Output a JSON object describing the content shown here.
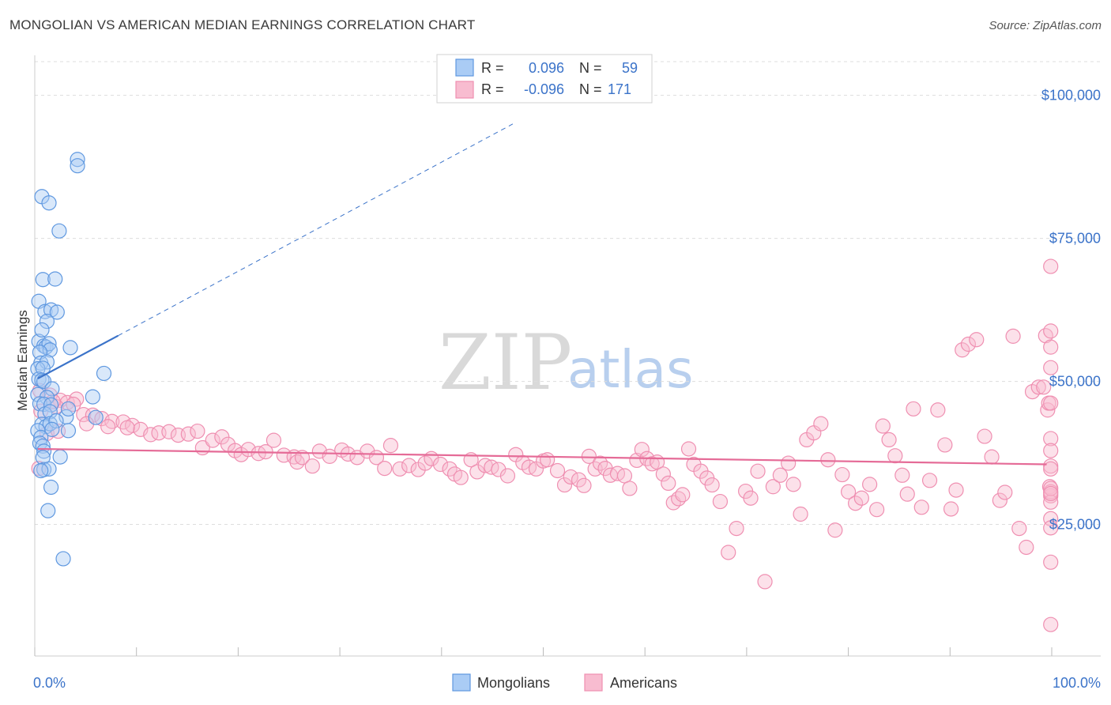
{
  "title": "MONGOLIAN VS AMERICAN MEDIAN EARNINGS CORRELATION CHART",
  "source": "Source: ZipAtlas.com",
  "watermark": {
    "zip": "ZIP",
    "atlas": "atlas"
  },
  "colors": {
    "blue": "#3b73c9",
    "blue_fill": "#aaccf5",
    "blue_stroke": "#5f98e0",
    "pink": "#e56b97",
    "pink_fill": "#f8bcd0",
    "pink_stroke": "#ef8fb1",
    "grid": "#dddddd"
  },
  "legend_box": {
    "rows": [
      {
        "r_label": "R =",
        "r_value": "0.096",
        "n_label": "N =",
        "n_value": "59",
        "series": "blue"
      },
      {
        "r_label": "R =",
        "r_value": "-0.096",
        "n_label": "N =",
        "n_value": "171",
        "series": "pink"
      }
    ]
  },
  "chart_data": {
    "type": "scatter",
    "title": "MONGOLIAN VS AMERICAN MEDIAN EARNINGS CORRELATION CHART",
    "xlabel": "",
    "ylabel": "Median Earnings",
    "xlim": [
      0,
      100
    ],
    "ylim": [
      2000,
      107000
    ],
    "x_tick_labels": [
      "0.0%",
      "100.0%"
    ],
    "y_ticks": [
      25000,
      50000,
      75000,
      100000
    ],
    "y_tick_labels": [
      "$25,000",
      "$50,000",
      "$75,000",
      "$100,000"
    ],
    "grid": true,
    "legend_position": "bottom-center",
    "series": [
      {
        "name": "Mongolians",
        "color": "blue",
        "r": 0.096,
        "n": 59,
        "trend": {
          "x0": 0.3,
          "y0": 50500,
          "x1": 8.2,
          "y1": 58000,
          "dash_to_x": 47,
          "dash_to_y": 95000
        },
        "points": [
          [
            0.7,
            82300
          ],
          [
            1.4,
            81200
          ],
          [
            4.2,
            88800
          ],
          [
            4.2,
            87700
          ],
          [
            2.4,
            76300
          ],
          [
            0.8,
            67800
          ],
          [
            2.0,
            67900
          ],
          [
            0.4,
            64000
          ],
          [
            1.0,
            62200
          ],
          [
            1.6,
            62500
          ],
          [
            2.2,
            62100
          ],
          [
            1.2,
            60500
          ],
          [
            0.4,
            57000
          ],
          [
            0.7,
            59000
          ],
          [
            0.9,
            56200
          ],
          [
            1.1,
            56000
          ],
          [
            1.4,
            56600
          ],
          [
            1.5,
            55500
          ],
          [
            3.5,
            55900
          ],
          [
            0.5,
            55100
          ],
          [
            0.6,
            53200
          ],
          [
            1.2,
            53400
          ],
          [
            0.3,
            52200
          ],
          [
            0.8,
            52300
          ],
          [
            6.8,
            51400
          ],
          [
            0.4,
            50400
          ],
          [
            0.7,
            50200
          ],
          [
            0.9,
            50000
          ],
          [
            1.7,
            48700
          ],
          [
            0.3,
            47700
          ],
          [
            1.2,
            47200
          ],
          [
            5.7,
            47300
          ],
          [
            0.5,
            46100
          ],
          [
            0.9,
            46000
          ],
          [
            1.6,
            45900
          ],
          [
            1.0,
            44300
          ],
          [
            1.5,
            44700
          ],
          [
            3.1,
            43800
          ],
          [
            6.0,
            43700
          ],
          [
            0.7,
            42500
          ],
          [
            1.1,
            42100
          ],
          [
            1.5,
            42600
          ],
          [
            2.1,
            43100
          ],
          [
            0.3,
            41400
          ],
          [
            1.7,
            41600
          ],
          [
            3.3,
            41400
          ],
          [
            0.6,
            40200
          ],
          [
            0.5,
            39200
          ],
          [
            0.8,
            38700
          ],
          [
            0.9,
            37800
          ],
          [
            2.5,
            36800
          ],
          [
            0.8,
            36700
          ],
          [
            0.9,
            34600
          ],
          [
            1.4,
            34700
          ],
          [
            0.6,
            34400
          ],
          [
            1.6,
            31500
          ],
          [
            1.3,
            27400
          ],
          [
            2.8,
            19000
          ],
          [
            3.3,
            45200
          ]
        ]
      },
      {
        "name": "Americans",
        "color": "pink",
        "r": -0.096,
        "n": 171,
        "trend": {
          "x0": 0.3,
          "y0": 38200,
          "x1": 99.5,
          "y1": 35500
        },
        "points": [
          [
            0.5,
            48400
          ],
          [
            1.5,
            47600
          ],
          [
            2.5,
            46700
          ],
          [
            3.2,
            46300
          ],
          [
            4.1,
            46900
          ],
          [
            0.6,
            44800
          ],
          [
            2.1,
            45600
          ],
          [
            4.8,
            44200
          ],
          [
            5.7,
            44100
          ],
          [
            6.6,
            43500
          ],
          [
            7.6,
            43000
          ],
          [
            8.7,
            42900
          ],
          [
            9.6,
            42300
          ],
          [
            10.4,
            41600
          ],
          [
            11.4,
            40700
          ],
          [
            12.2,
            41000
          ],
          [
            13.2,
            41200
          ],
          [
            14.1,
            40600
          ],
          [
            15.1,
            40800
          ],
          [
            16.0,
            41300
          ],
          [
            1.2,
            40900
          ],
          [
            2.3,
            41300
          ],
          [
            16.5,
            38400
          ],
          [
            17.5,
            39700
          ],
          [
            18.4,
            40300
          ],
          [
            19.0,
            39000
          ],
          [
            19.7,
            37900
          ],
          [
            20.3,
            37200
          ],
          [
            21.0,
            38100
          ],
          [
            22.0,
            37400
          ],
          [
            22.7,
            37700
          ],
          [
            23.5,
            39700
          ],
          [
            24.5,
            37100
          ],
          [
            25.5,
            36800
          ],
          [
            25.8,
            35900
          ],
          [
            26.3,
            36700
          ],
          [
            27.3,
            35200
          ],
          [
            28.0,
            37800
          ],
          [
            29.0,
            36900
          ],
          [
            30.2,
            38000
          ],
          [
            30.8,
            37300
          ],
          [
            31.7,
            36700
          ],
          [
            32.7,
            37800
          ],
          [
            33.6,
            36700
          ],
          [
            34.4,
            34800
          ],
          [
            35.0,
            38800
          ],
          [
            35.9,
            34700
          ],
          [
            36.8,
            35300
          ],
          [
            37.7,
            34600
          ],
          [
            38.4,
            35700
          ],
          [
            39.0,
            36500
          ],
          [
            39.9,
            35500
          ],
          [
            40.8,
            34700
          ],
          [
            41.3,
            33800
          ],
          [
            41.9,
            33200
          ],
          [
            42.9,
            36300
          ],
          [
            43.5,
            34200
          ],
          [
            44.3,
            35300
          ],
          [
            44.9,
            35000
          ],
          [
            45.6,
            34600
          ],
          [
            46.5,
            33500
          ],
          [
            47.3,
            37200
          ],
          [
            48.0,
            35800
          ],
          [
            48.6,
            35000
          ],
          [
            49.3,
            34700
          ],
          [
            50.0,
            36100
          ],
          [
            50.4,
            36300
          ],
          [
            51.4,
            34400
          ],
          [
            52.1,
            31900
          ],
          [
            52.7,
            33300
          ],
          [
            53.5,
            32800
          ],
          [
            54.0,
            31800
          ],
          [
            54.5,
            36900
          ],
          [
            55.1,
            34700
          ],
          [
            55.6,
            35700
          ],
          [
            56.1,
            34800
          ],
          [
            56.6,
            33600
          ],
          [
            57.3,
            33900
          ],
          [
            58.0,
            33500
          ],
          [
            58.5,
            31300
          ],
          [
            59.2,
            36200
          ],
          [
            59.7,
            38100
          ],
          [
            60.2,
            36500
          ],
          [
            60.7,
            35600
          ],
          [
            61.2,
            35900
          ],
          [
            61.8,
            33800
          ],
          [
            62.3,
            32200
          ],
          [
            62.8,
            28800
          ],
          [
            63.3,
            29500
          ],
          [
            63.7,
            30200
          ],
          [
            64.3,
            38200
          ],
          [
            64.8,
            35500
          ],
          [
            65.5,
            34300
          ],
          [
            66.1,
            33100
          ],
          [
            66.6,
            31900
          ],
          [
            67.4,
            29000
          ],
          [
            68.2,
            20100
          ],
          [
            69.0,
            24300
          ],
          [
            69.9,
            30800
          ],
          [
            70.4,
            29600
          ],
          [
            71.1,
            34300
          ],
          [
            71.8,
            15000
          ],
          [
            72.6,
            31600
          ],
          [
            73.3,
            33600
          ],
          [
            74.1,
            35700
          ],
          [
            74.6,
            32000
          ],
          [
            75.3,
            26800
          ],
          [
            75.9,
            39800
          ],
          [
            76.6,
            41000
          ],
          [
            77.3,
            42600
          ],
          [
            78.0,
            36300
          ],
          [
            78.7,
            24000
          ],
          [
            79.4,
            33700
          ],
          [
            80.0,
            30700
          ],
          [
            80.7,
            28700
          ],
          [
            81.3,
            29600
          ],
          [
            82.1,
            32000
          ],
          [
            82.8,
            27600
          ],
          [
            83.4,
            42200
          ],
          [
            84.0,
            39800
          ],
          [
            84.6,
            37000
          ],
          [
            85.3,
            33600
          ],
          [
            85.8,
            30300
          ],
          [
            86.4,
            45200
          ],
          [
            87.2,
            28000
          ],
          [
            88.0,
            32700
          ],
          [
            88.8,
            45000
          ],
          [
            89.5,
            38900
          ],
          [
            90.1,
            27700
          ],
          [
            90.6,
            31000
          ],
          [
            91.2,
            55500
          ],
          [
            91.8,
            56500
          ],
          [
            92.6,
            57300
          ],
          [
            93.4,
            40400
          ],
          [
            94.1,
            36800
          ],
          [
            94.9,
            29200
          ],
          [
            95.4,
            30600
          ],
          [
            96.2,
            57900
          ],
          [
            96.8,
            24300
          ],
          [
            97.5,
            21000
          ],
          [
            98.1,
            48200
          ],
          [
            98.7,
            49000
          ],
          [
            99.2,
            49000
          ],
          [
            99.4,
            58000
          ],
          [
            99.6,
            45000
          ],
          [
            99.7,
            46200
          ],
          [
            99.8,
            31600
          ],
          [
            99.9,
            35200
          ],
          [
            99.9,
            26000
          ],
          [
            99.9,
            30000
          ],
          [
            99.9,
            24400
          ],
          [
            99.9,
            30700
          ],
          [
            99.9,
            18400
          ],
          [
            99.9,
            28900
          ],
          [
            99.9,
            52400
          ],
          [
            99.9,
            40000
          ],
          [
            99.9,
            34700
          ],
          [
            99.9,
            70100
          ],
          [
            99.9,
            46200
          ],
          [
            99.9,
            7500
          ],
          [
            99.9,
            56000
          ],
          [
            99.9,
            31300
          ],
          [
            99.9,
            58800
          ],
          [
            99.9,
            30400
          ],
          [
            99.9,
            37900
          ],
          [
            1.8,
            46500
          ],
          [
            3.8,
            46000
          ],
          [
            0.4,
            34800
          ],
          [
            7.2,
            42100
          ],
          [
            5.1,
            42600
          ],
          [
            9.1,
            41900
          ]
        ]
      }
    ]
  },
  "bottom_legend": [
    {
      "label": "Mongolians",
      "series": "blue"
    },
    {
      "label": "Americans",
      "series": "pink"
    }
  ]
}
